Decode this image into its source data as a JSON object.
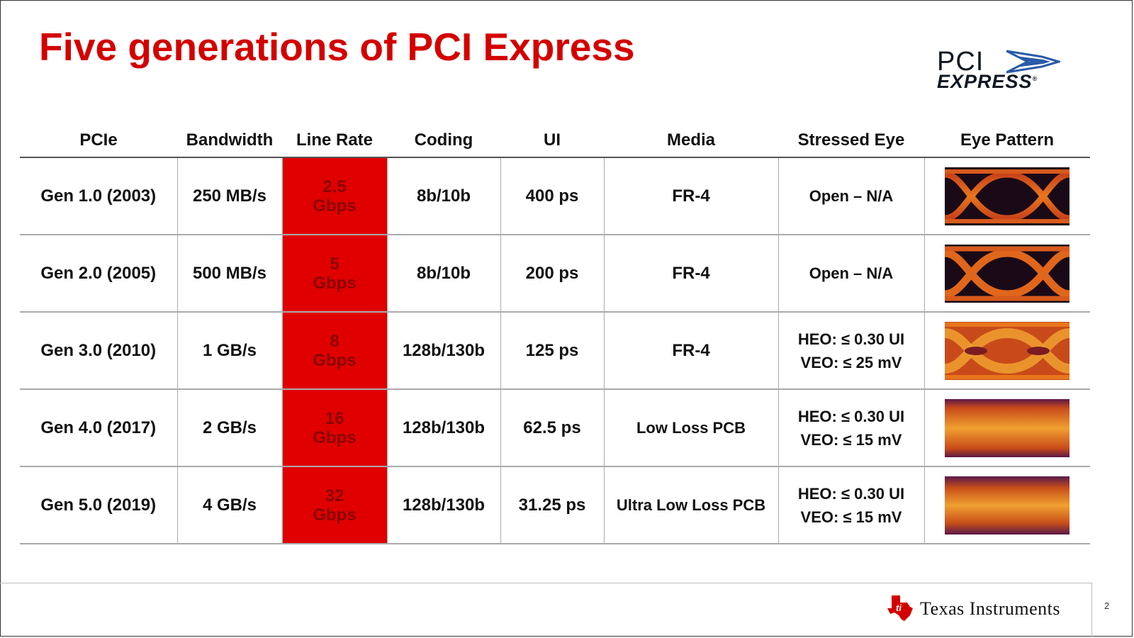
{
  "title": "Five generations of PCI Express",
  "logo": {
    "pci": "PCI",
    "express": "EXPRESS",
    "registered": "®"
  },
  "table": {
    "headers": [
      "PCIe",
      "Bandwidth",
      "Line Rate",
      "Coding",
      "UI",
      "Media",
      "Stressed Eye",
      "Eye Pattern"
    ],
    "rows": [
      {
        "gen": "Gen 1.0 (2003)",
        "bandwidth": "250 MB/s",
        "rate_value": "2.5",
        "rate_unit": "Gbps",
        "coding": "8b/10b",
        "ui": "400 ps",
        "media": "FR-4",
        "eye_1": "Open – N/A",
        "eye_2": ""
      },
      {
        "gen": "Gen 2.0 (2005)",
        "bandwidth": "500 MB/s",
        "rate_value": "5",
        "rate_unit": "Gbps",
        "coding": "8b/10b",
        "ui": "200 ps",
        "media": "FR-4",
        "eye_1": "Open – N/A",
        "eye_2": ""
      },
      {
        "gen": "Gen 3.0 (2010)",
        "bandwidth": "1 GB/s",
        "rate_value": "8",
        "rate_unit": "Gbps",
        "coding": "128b/130b",
        "ui": "125 ps",
        "media": "FR-4",
        "eye_1": "HEO:   ≤ 0.30 UI",
        "eye_2": "VEO:  ≤ 25 mV"
      },
      {
        "gen": "Gen 4.0 (2017)",
        "bandwidth": "2 GB/s",
        "rate_value": "16",
        "rate_unit": "Gbps",
        "coding": "128b/130b",
        "ui": "62.5 ps",
        "media": "Low Loss PCB",
        "eye_1": "HEO:   ≤ 0.30 UI",
        "eye_2": "VEO:  ≤ 15 mV"
      },
      {
        "gen": "Gen 5.0 (2019)",
        "bandwidth": "4 GB/s",
        "rate_value": "32",
        "rate_unit": "Gbps",
        "coding": "128b/130b",
        "ui": "31.25 ps",
        "media": "Ultra Low Loss PCB",
        "eye_1": "HEO:   ≤ 0.30 UI",
        "eye_2": "VEO:  ≤ 15 mV"
      }
    ]
  },
  "footer": {
    "company": "Texas Instruments",
    "page": "2"
  },
  "colors": {
    "title_red": "#d40000",
    "rate_fill": "#e00000",
    "rate_text": "#8a0000"
  }
}
